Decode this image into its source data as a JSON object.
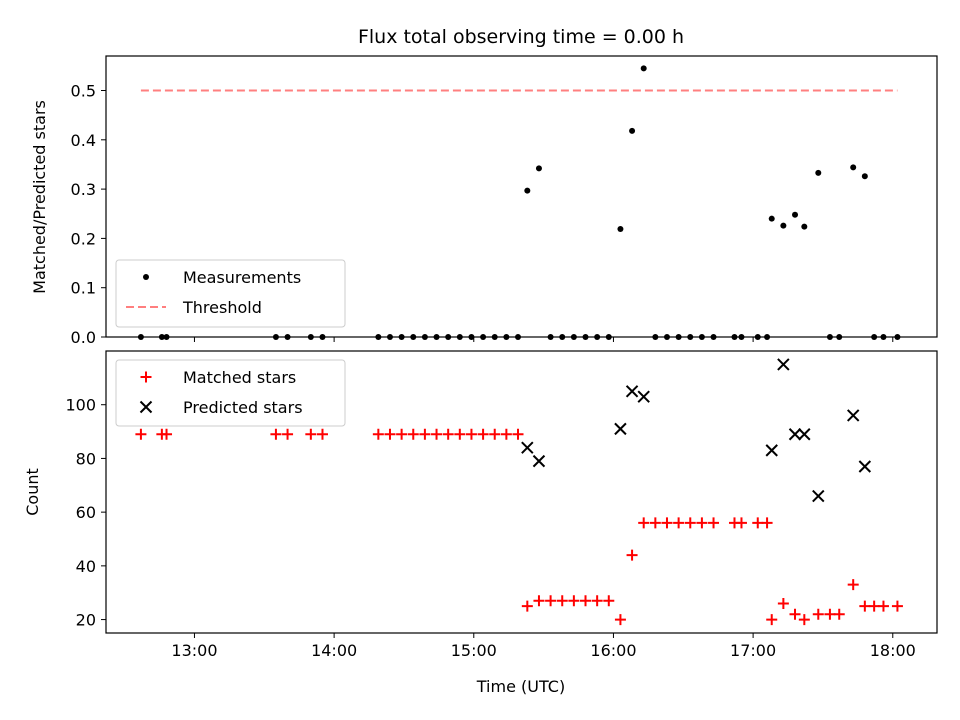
{
  "chart_data": {
    "title": "Flux total observing time = 0.00 h",
    "xlabel": "Time (UTC)",
    "xlim": [
      "12:22",
      "18:19"
    ],
    "xticks": [
      "13:00",
      "14:00",
      "15:00",
      "16:00",
      "17:00",
      "18:00"
    ],
    "panels": [
      {
        "type": "scatter",
        "ylabel": "Matched/Predicted stars",
        "ylim": [
          0,
          0.57
        ],
        "yticks": [
          "0.0",
          "0.1",
          "0.2",
          "0.3",
          "0.4",
          "0.5"
        ],
        "grid": false,
        "legend_position": "lower-left",
        "series": [
          {
            "name": "Measurements",
            "kind": "dots",
            "color": "#000000",
            "points": [
              [
                "12:37",
                0
              ],
              [
                "12:46",
                0
              ],
              [
                "12:48",
                0
              ],
              [
                "13:35",
                0
              ],
              [
                "13:40",
                0
              ],
              [
                "13:50",
                0
              ],
              [
                "13:55",
                0
              ],
              [
                "14:19",
                0
              ],
              [
                "14:24",
                0
              ],
              [
                "14:29",
                0
              ],
              [
                "14:34",
                0
              ],
              [
                "14:39",
                0
              ],
              [
                "14:44",
                0
              ],
              [
                "14:49",
                0
              ],
              [
                "14:54",
                0
              ],
              [
                "14:59",
                0
              ],
              [
                "15:04",
                0
              ],
              [
                "15:09",
                0
              ],
              [
                "15:14",
                0
              ],
              [
                "15:19",
                0
              ],
              [
                "15:23",
                0.297
              ],
              [
                "15:28",
                0.342
              ],
              [
                "15:33",
                0
              ],
              [
                "15:38",
                0
              ],
              [
                "15:43",
                0
              ],
              [
                "15:48",
                0
              ],
              [
                "15:53",
                0
              ],
              [
                "15:58",
                0
              ],
              [
                "16:03",
                0.219
              ],
              [
                "16:08",
                0.418
              ],
              [
                "16:13",
                0.545
              ],
              [
                "16:18",
                0
              ],
              [
                "16:23",
                0
              ],
              [
                "16:28",
                0
              ],
              [
                "16:33",
                0
              ],
              [
                "16:38",
                0
              ],
              [
                "16:43",
                0
              ],
              [
                "16:52",
                0
              ],
              [
                "16:55",
                0
              ],
              [
                "17:02",
                0
              ],
              [
                "17:06",
                0
              ],
              [
                "17:08",
                0.24
              ],
              [
                "17:13",
                0.226
              ],
              [
                "17:18",
                0.248
              ],
              [
                "17:22",
                0.224
              ],
              [
                "17:28",
                0.333
              ],
              [
                "17:33",
                0
              ],
              [
                "17:37",
                0
              ],
              [
                "17:43",
                0.344
              ],
              [
                "17:48",
                0.326
              ],
              [
                "17:52",
                0
              ],
              [
                "17:56",
                0
              ],
              [
                "18:02",
                0
              ]
            ]
          },
          {
            "name": "Threshold",
            "kind": "dashed-line",
            "color": "#ff7f7f",
            "points": [
              [
                "12:37",
                0.5
              ],
              [
                "18:02",
                0.5
              ]
            ]
          }
        ]
      },
      {
        "type": "scatter",
        "ylabel": "Count",
        "ylim": [
          15,
          120
        ],
        "yticks": [
          "20",
          "40",
          "60",
          "80",
          "100"
        ],
        "grid": false,
        "legend_position": "upper-left",
        "series": [
          {
            "name": "Matched stars",
            "kind": "plus",
            "color": "#ff0000",
            "points": [
              [
                "12:37",
                89
              ],
              [
                "12:46",
                89
              ],
              [
                "12:48",
                89
              ],
              [
                "13:35",
                89
              ],
              [
                "13:40",
                89
              ],
              [
                "13:50",
                89
              ],
              [
                "13:55",
                89
              ],
              [
                "14:19",
                89
              ],
              [
                "14:24",
                89
              ],
              [
                "14:29",
                89
              ],
              [
                "14:34",
                89
              ],
              [
                "14:39",
                89
              ],
              [
                "14:44",
                89
              ],
              [
                "14:49",
                89
              ],
              [
                "14:54",
                89
              ],
              [
                "14:59",
                89
              ],
              [
                "15:04",
                89
              ],
              [
                "15:09",
                89
              ],
              [
                "15:14",
                89
              ],
              [
                "15:19",
                89
              ],
              [
                "15:23",
                25
              ],
              [
                "15:28",
                27
              ],
              [
                "15:33",
                27
              ],
              [
                "15:38",
                27
              ],
              [
                "15:43",
                27
              ],
              [
                "15:48",
                27
              ],
              [
                "15:53",
                27
              ],
              [
                "15:58",
                27
              ],
              [
                "16:03",
                20
              ],
              [
                "16:08",
                44
              ],
              [
                "16:13",
                56
              ],
              [
                "16:18",
                56
              ],
              [
                "16:23",
                56
              ],
              [
                "16:28",
                56
              ],
              [
                "16:33",
                56
              ],
              [
                "16:38",
                56
              ],
              [
                "16:43",
                56
              ],
              [
                "16:52",
                56
              ],
              [
                "16:55",
                56
              ],
              [
                "17:02",
                56
              ],
              [
                "17:06",
                56
              ],
              [
                "17:08",
                20
              ],
              [
                "17:13",
                26
              ],
              [
                "17:18",
                22
              ],
              [
                "17:22",
                20
              ],
              [
                "17:28",
                22
              ],
              [
                "17:33",
                22
              ],
              [
                "17:37",
                22
              ],
              [
                "17:43",
                33
              ],
              [
                "17:48",
                25
              ],
              [
                "17:52",
                25
              ],
              [
                "17:56",
                25
              ],
              [
                "18:02",
                25
              ]
            ]
          },
          {
            "name": "Predicted stars",
            "kind": "x",
            "color": "#000000",
            "points": [
              [
                "15:23",
                84
              ],
              [
                "15:28",
                79
              ],
              [
                "16:03",
                91
              ],
              [
                "16:08",
                105
              ],
              [
                "16:13",
                103
              ],
              [
                "17:08",
                83
              ],
              [
                "17:13",
                115
              ],
              [
                "17:18",
                89
              ],
              [
                "17:22",
                89
              ],
              [
                "17:28",
                66
              ],
              [
                "17:43",
                96
              ],
              [
                "17:48",
                77
              ]
            ]
          }
        ]
      }
    ]
  }
}
